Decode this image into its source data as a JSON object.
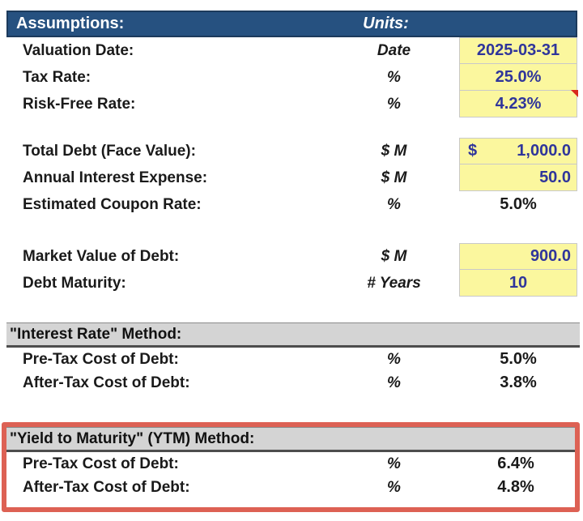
{
  "colors": {
    "header-blue": "#265180",
    "header-border": "#1C3A5C",
    "input-yellow": "#FBF79E",
    "input-blue": "#2F359B",
    "section-gray": "#D4D4D4",
    "highlight-red": "#DD6154",
    "comment-red": "#D8291C"
  },
  "header": {
    "title": "Assumptions:",
    "units_label": "Units:"
  },
  "assumptions": {
    "valuation_date": {
      "label": "Valuation Date:",
      "unit": "Date",
      "value": "2025-03-31"
    },
    "tax_rate": {
      "label": "Tax Rate:",
      "unit": "%",
      "value": "25.0%"
    },
    "risk_free_rate": {
      "label": "Risk-Free Rate:",
      "unit": "%",
      "value": "4.23%"
    },
    "total_debt": {
      "label": "Total Debt (Face Value):",
      "unit": "$ M",
      "currency_symbol": "$",
      "value": "1,000.0"
    },
    "annual_interest_expense": {
      "label": "Annual Interest Expense:",
      "unit": "$ M",
      "value": "50.0"
    },
    "estimated_coupon_rate": {
      "label": "Estimated Coupon Rate:",
      "unit": "%",
      "value": "5.0%"
    },
    "market_value_of_debt": {
      "label": "Market Value of Debt:",
      "unit": "$ M",
      "value": "900.0"
    },
    "debt_maturity": {
      "label": "Debt Maturity:",
      "unit": "# Years",
      "value": "10"
    }
  },
  "interest_rate_method": {
    "title": "\"Interest Rate\" Method:",
    "pre_tax": {
      "label": "Pre-Tax Cost of Debt:",
      "unit": "%",
      "value": "5.0%"
    },
    "after_tax": {
      "label": "After-Tax Cost of Debt:",
      "unit": "%",
      "value": "3.8%"
    }
  },
  "ytm_method": {
    "title": "\"Yield to Maturity\" (YTM) Method:",
    "pre_tax": {
      "label": "Pre-Tax Cost of Debt:",
      "unit": "%",
      "value": "6.4%"
    },
    "after_tax": {
      "label": "After-Tax Cost of Debt:",
      "unit": "%",
      "value": "4.8%"
    }
  }
}
